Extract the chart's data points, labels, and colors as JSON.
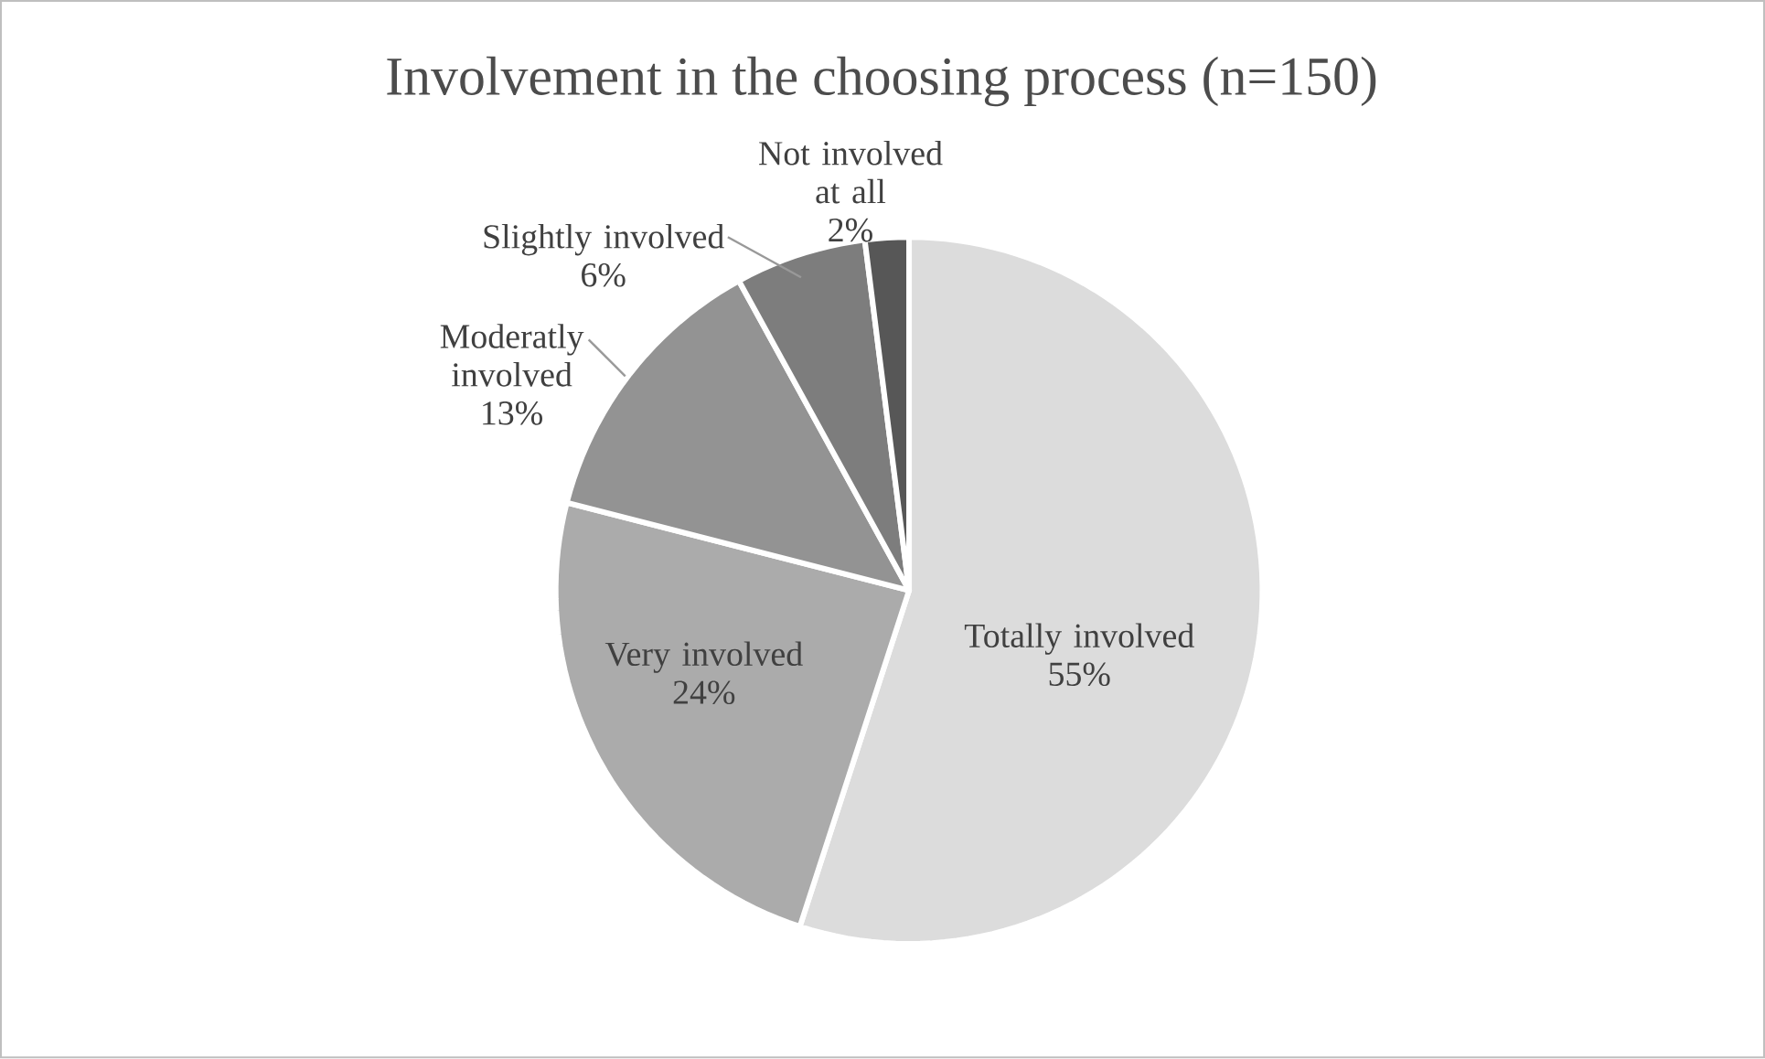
{
  "chart_data": {
    "type": "pie",
    "title": "Involvement in the choosing process (n=150)",
    "categories": [
      "Totally involved",
      "Very involved",
      "Moderatly involved",
      "Slightly involved",
      "Not involved at all"
    ],
    "values": [
      55,
      24,
      13,
      6,
      2
    ],
    "colors": [
      "#dcdcdc",
      "#ababab",
      "#939393",
      "#7d7d7d",
      "#575757"
    ],
    "value_labels": [
      "55%",
      "24%",
      "13%",
      "6%",
      "2%"
    ]
  }
}
